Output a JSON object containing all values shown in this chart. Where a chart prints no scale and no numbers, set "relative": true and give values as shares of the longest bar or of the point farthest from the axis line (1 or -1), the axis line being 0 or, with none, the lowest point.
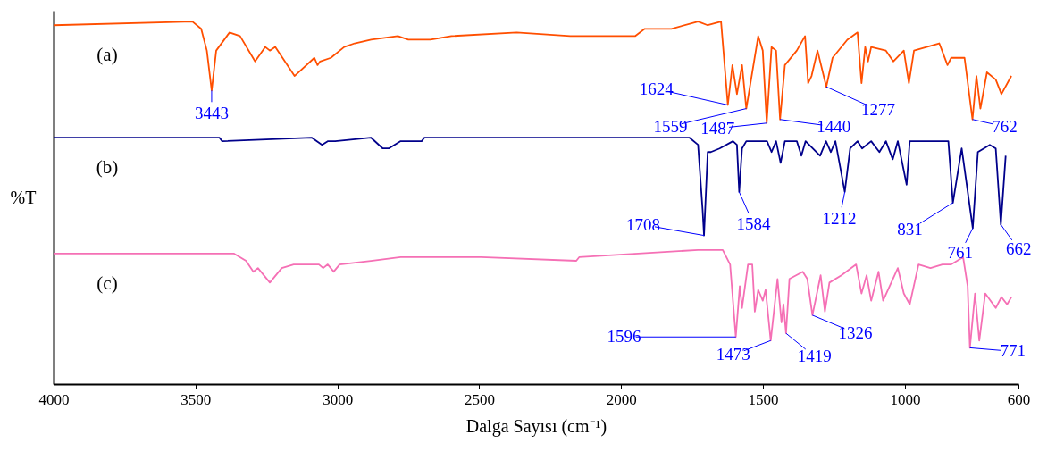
{
  "chart_data": {
    "type": "line",
    "relative": true,
    "xlabel": "Dalga Sayısı (cm⁻¹)",
    "ylabel": "%T",
    "xlim": [
      4000,
      600
    ],
    "xticks": [
      4000,
      3500,
      3000,
      2500,
      2000,
      1500,
      1000,
      600
    ],
    "series": [
      {
        "name": "(a)",
        "color": "#ff4f00",
        "x": [
          4000,
          3511,
          3480,
          3460,
          3443,
          3427,
          3380,
          3343,
          3290,
          3254,
          3238,
          3219,
          3151,
          3081,
          3070,
          3061,
          3023,
          2976,
          2939,
          2881,
          2787,
          2750,
          2672,
          2598,
          2368,
          2179,
          2043,
          1951,
          1917,
          1823,
          1729,
          1695,
          1648,
          1624,
          1608,
          1592,
          1574,
          1559,
          1517,
          1501,
          1487,
          1470,
          1454,
          1440,
          1423,
          1381,
          1352,
          1341,
          1329,
          1308,
          1277,
          1255,
          1203,
          1167,
          1153,
          1140,
          1130,
          1119,
          1067,
          1041,
          1004,
          986,
          968,
          879,
          850,
          837,
          790,
          762,
          748,
          734,
          711,
          680,
          660,
          625
        ],
        "values": [
          0.99,
          1.0,
          0.98,
          0.92,
          0.81,
          0.92,
          0.97,
          0.96,
          0.89,
          0.93,
          0.92,
          0.93,
          0.85,
          0.9,
          0.88,
          0.89,
          0.9,
          0.93,
          0.94,
          0.95,
          0.96,
          0.95,
          0.95,
          0.96,
          0.97,
          0.96,
          0.96,
          0.96,
          0.98,
          0.98,
          1.0,
          0.99,
          1.0,
          0.77,
          0.88,
          0.8,
          0.88,
          0.76,
          0.96,
          0.92,
          0.72,
          0.93,
          0.92,
          0.73,
          0.88,
          0.92,
          0.96,
          0.83,
          0.85,
          0.92,
          0.82,
          0.9,
          0.95,
          0.97,
          0.83,
          0.93,
          0.89,
          0.93,
          0.92,
          0.89,
          0.92,
          0.83,
          0.92,
          0.94,
          0.88,
          0.9,
          0.9,
          0.73,
          0.85,
          0.76,
          0.86,
          0.84,
          0.8,
          0.85
        ]
      },
      {
        "name": "(b)",
        "color": "#00008b",
        "x": [
          4000,
          3416,
          3406,
          3091,
          3054,
          3033,
          3008,
          2882,
          2840,
          2819,
          2777,
          2703,
          2693,
          2284,
          1760,
          1729,
          1713,
          1708,
          1695,
          1684,
          1653,
          1606,
          1592,
          1584,
          1574,
          1559,
          1486,
          1470,
          1454,
          1438,
          1423,
          1381,
          1365,
          1350,
          1299,
          1278,
          1261,
          1245,
          1212,
          1193,
          1167,
          1151,
          1119,
          1090,
          1067,
          1043,
          1025,
          994,
          983,
          910,
          847,
          831,
          800,
          761,
          743,
          701,
          680,
          662,
          645
        ],
        "values": [
          0.68,
          0.68,
          0.67,
          0.68,
          0.66,
          0.67,
          0.67,
          0.68,
          0.65,
          0.65,
          0.67,
          0.67,
          0.68,
          0.68,
          0.68,
          0.66,
          0.48,
          0.41,
          0.64,
          0.64,
          0.65,
          0.67,
          0.66,
          0.53,
          0.65,
          0.67,
          0.67,
          0.64,
          0.67,
          0.61,
          0.67,
          0.67,
          0.63,
          0.67,
          0.63,
          0.67,
          0.64,
          0.67,
          0.53,
          0.65,
          0.67,
          0.65,
          0.67,
          0.64,
          0.67,
          0.62,
          0.67,
          0.55,
          0.67,
          0.67,
          0.67,
          0.5,
          0.65,
          0.43,
          0.64,
          0.66,
          0.65,
          0.44,
          0.63
        ]
      },
      {
        "name": "(c)",
        "color": "#f570b5",
        "x": [
          4000,
          3364,
          3322,
          3296,
          3280,
          3238,
          3196,
          3154,
          3112,
          3091,
          3065,
          3050,
          3034,
          3013,
          2992,
          2882,
          2777,
          2494,
          2158,
          2148,
          1729,
          1642,
          1616,
          1596,
          1582,
          1574,
          1553,
          1538,
          1529,
          1517,
          1501,
          1491,
          1473,
          1449,
          1435,
          1428,
          1419,
          1407,
          1360,
          1344,
          1326,
          1297,
          1282,
          1266,
          1224,
          1172,
          1153,
          1135,
          1119,
          1093,
          1077,
          1025,
          1004,
          983,
          952,
          910,
          868,
          837,
          795,
          779,
          771,
          753,
          738,
          717,
          680,
          660,
          640,
          625
        ],
        "values": [
          0.36,
          0.36,
          0.34,
          0.31,
          0.32,
          0.28,
          0.32,
          0.33,
          0.33,
          0.33,
          0.33,
          0.32,
          0.33,
          0.31,
          0.33,
          0.34,
          0.35,
          0.35,
          0.34,
          0.35,
          0.37,
          0.37,
          0.33,
          0.13,
          0.27,
          0.21,
          0.33,
          0.33,
          0.2,
          0.26,
          0.23,
          0.26,
          0.12,
          0.29,
          0.17,
          0.22,
          0.14,
          0.29,
          0.31,
          0.29,
          0.19,
          0.3,
          0.2,
          0.28,
          0.3,
          0.33,
          0.25,
          0.3,
          0.23,
          0.31,
          0.23,
          0.32,
          0.25,
          0.22,
          0.33,
          0.32,
          0.33,
          0.33,
          0.35,
          0.27,
          0.1,
          0.25,
          0.12,
          0.25,
          0.21,
          0.24,
          0.22,
          0.24
        ]
      }
    ],
    "annotations": [
      {
        "text": "3443",
        "x": 3443,
        "y": 0.81
      },
      {
        "text": "1624",
        "x": 1624,
        "y": 0.77
      },
      {
        "text": "1559",
        "x": 1559,
        "y": 0.76
      },
      {
        "text": "1487",
        "x": 1487,
        "y": 0.72
      },
      {
        "text": "1440",
        "x": 1440,
        "y": 0.73
      },
      {
        "text": "1277",
        "x": 1277,
        "y": 0.82
      },
      {
        "text": "762",
        "x": 762,
        "y": 0.73
      },
      {
        "text": "1708",
        "x": 1708,
        "y": 0.41
      },
      {
        "text": "1584",
        "x": 1584,
        "y": 0.53
      },
      {
        "text": "1212",
        "x": 1212,
        "y": 0.53
      },
      {
        "text": "831",
        "x": 831,
        "y": 0.5
      },
      {
        "text": "761",
        "x": 761,
        "y": 0.43
      },
      {
        "text": "662",
        "x": 662,
        "y": 0.44
      },
      {
        "text": "1596",
        "x": 1596,
        "y": 0.13
      },
      {
        "text": "1473",
        "x": 1473,
        "y": 0.12
      },
      {
        "text": "1419",
        "x": 1419,
        "y": 0.14
      },
      {
        "text": "1326",
        "x": 1326,
        "y": 0.19
      },
      {
        "text": "771",
        "x": 771,
        "y": 0.1
      }
    ]
  }
}
